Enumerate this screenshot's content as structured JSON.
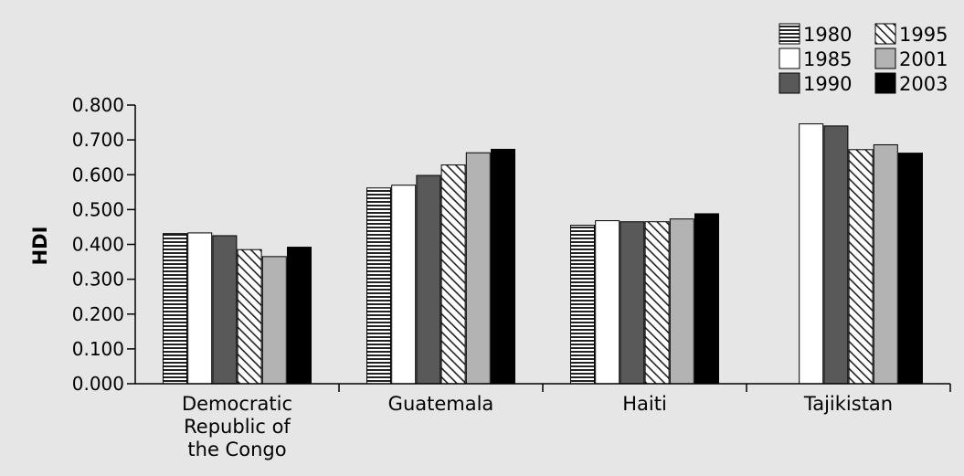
{
  "chart_data": {
    "type": "bar",
    "title": "",
    "xlabel": "",
    "ylabel": "HDI",
    "ylim": [
      0,
      0.8
    ],
    "yticks": [
      "0.000",
      "0.100",
      "0.200",
      "0.300",
      "0.400",
      "0.500",
      "0.600",
      "0.700",
      "0.800"
    ],
    "grid": false,
    "legend_position": "top-right",
    "categories": [
      [
        "Democratic",
        "Republic of",
        "the Congo"
      ],
      [
        "Guatemala"
      ],
      [
        "Haiti"
      ],
      [
        "Tajikistan"
      ]
    ],
    "series": [
      {
        "name": "1980",
        "values": [
          0.431,
          0.562,
          0.455,
          null
        ],
        "fill": "pattern-horizontal"
      },
      {
        "name": "1985",
        "values": [
          0.433,
          0.57,
          0.468,
          0.746
        ],
        "fill": "#ffffff"
      },
      {
        "name": "1990",
        "values": [
          0.425,
          0.598,
          0.465,
          0.74
        ],
        "fill": "#595959"
      },
      {
        "name": "1995",
        "values": [
          0.385,
          0.628,
          0.465,
          0.672
        ],
        "fill": "pattern-diagonal"
      },
      {
        "name": "2001",
        "values": [
          0.365,
          0.663,
          0.473,
          0.686
        ],
        "fill": "#b3b3b3"
      },
      {
        "name": "2003",
        "values": [
          0.392,
          0.673,
          0.488,
          0.662
        ],
        "fill": "#000000"
      }
    ]
  }
}
